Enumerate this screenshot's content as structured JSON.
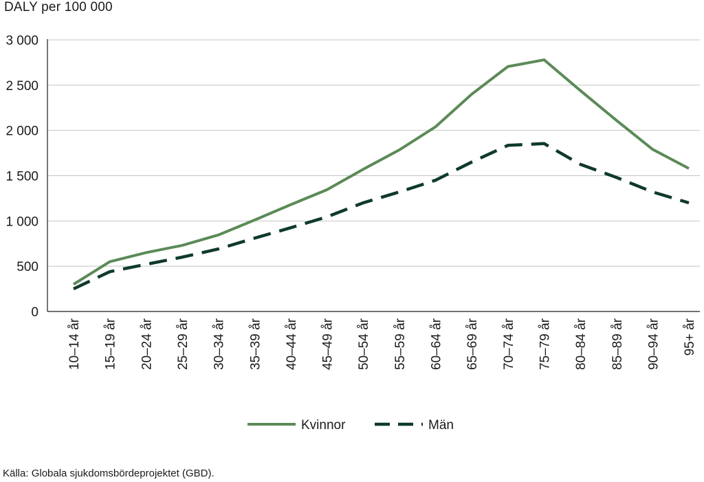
{
  "chart_data": {
    "type": "line",
    "title": "",
    "ylabel": "DALY per 100 000",
    "xlabel": "",
    "ylim": [
      0,
      3000
    ],
    "yticks": [
      0,
      500,
      1000,
      1500,
      2000,
      2500,
      3000
    ],
    "ytick_labels": [
      "0",
      "500",
      "1 000",
      "1 500",
      "2 000",
      "2 500",
      "3 000"
    ],
    "grid": true,
    "legend_position": "bottom",
    "categories": [
      "10–14 år",
      "15–19 år",
      "20–24 år",
      "25–29 år",
      "30–34 år",
      "35–39 år",
      "40–44 år",
      "45–49 år",
      "50–54 år",
      "55–59 år",
      "60–64 år",
      "65–69 år",
      "70–74 år",
      "75–79 år",
      "80–84 år",
      "85–89 år",
      "90–94 år",
      "95+ år"
    ],
    "series": [
      {
        "name": "Kvinnor",
        "color": "#5b8a57",
        "dash": "solid",
        "values": [
          300,
          550,
          650,
          730,
          845,
          1010,
          1180,
          1345,
          1570,
          1785,
          2040,
          2400,
          2705,
          2780,
          2440,
          2110,
          1790,
          1580
        ]
      },
      {
        "name": "Män",
        "color": "#0f3a2c",
        "dash": "dashed",
        "values": [
          250,
          440,
          520,
          600,
          690,
          810,
          925,
          1045,
          1200,
          1320,
          1450,
          1650,
          1835,
          1855,
          1625,
          1480,
          1320,
          1200
        ]
      }
    ]
  },
  "footer": {
    "source": "Källa: Globala sjukdomsbördeprojektet (GBD)."
  }
}
